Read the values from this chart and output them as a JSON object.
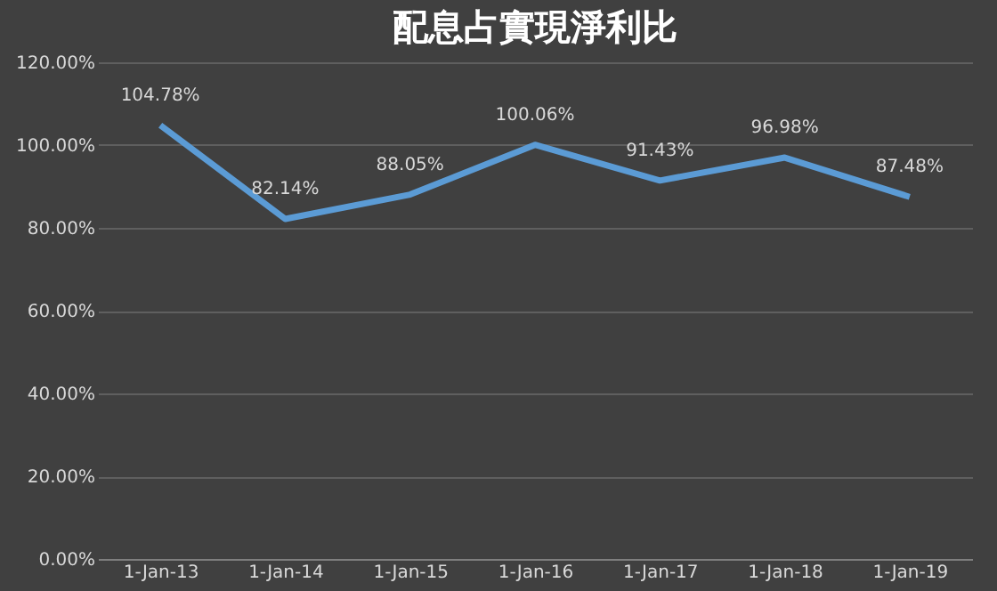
{
  "chart_data": {
    "type": "line",
    "title": "配息占實現淨利比",
    "categories": [
      "1-Jan-13",
      "1-Jan-14",
      "1-Jan-15",
      "1-Jan-16",
      "1-Jan-17",
      "1-Jan-18",
      "1-Jan-19"
    ],
    "series": [
      {
        "color": "#5b9bd5",
        "values": [
          104.78,
          82.14,
          88.05,
          100.06,
          91.43,
          96.98,
          87.48
        ],
        "value_labels": [
          "104.78%",
          "82.14%",
          "88.05%",
          "100.06%",
          "91.43%",
          "96.98%",
          "87.48%"
        ]
      }
    ],
    "ylim": [
      0,
      120
    ],
    "yticks": [
      {
        "value": 0,
        "label": "0.00%"
      },
      {
        "value": 20,
        "label": "20.00%"
      },
      {
        "value": 40,
        "label": "40.00%"
      },
      {
        "value": 60,
        "label": "60.00%"
      },
      {
        "value": 80,
        "label": "80.00%"
      },
      {
        "value": 100,
        "label": "100.00%"
      },
      {
        "value": 120,
        "label": "120.00%"
      }
    ],
    "grid": "y",
    "marker": "none",
    "line_style": "solid"
  }
}
